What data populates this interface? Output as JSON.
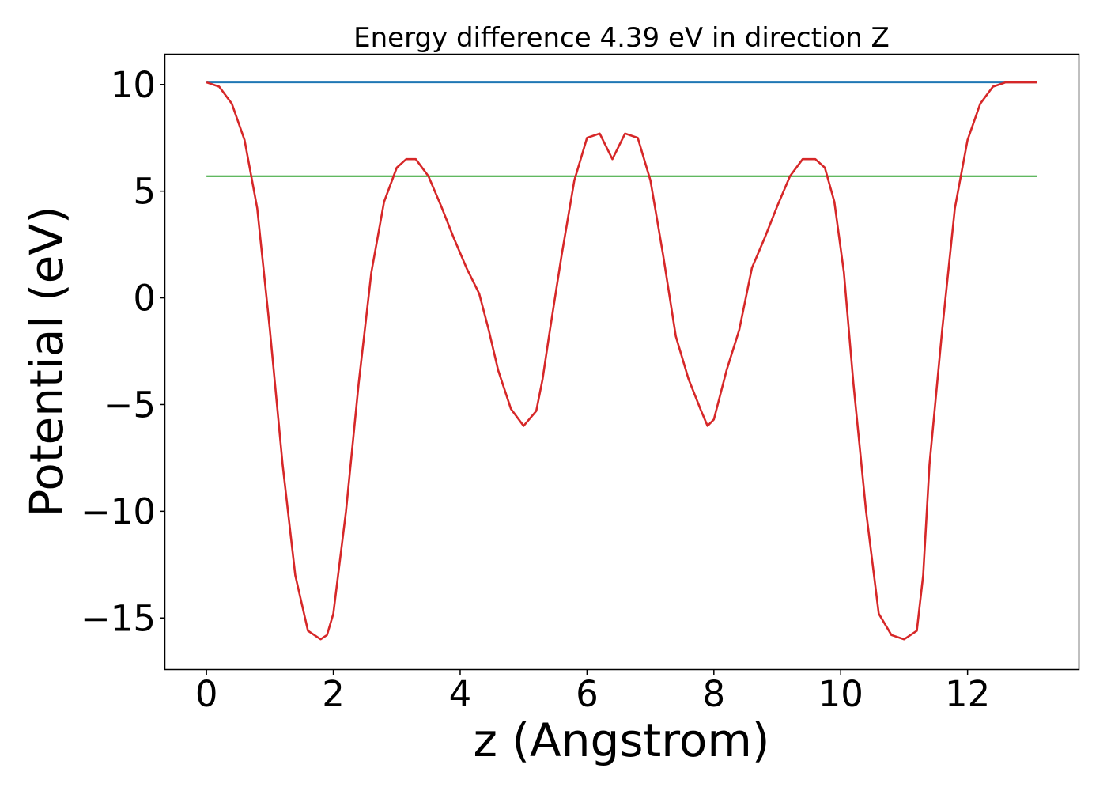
{
  "chart_data": {
    "type": "line",
    "title": "Energy difference 4.39 eV in direction Z",
    "xlabel": "z (Angstrom)",
    "ylabel": "Potential (eV)",
    "xlim": [
      -0.65,
      13.75
    ],
    "ylim": [
      -17.4,
      11.4
    ],
    "xticks": [
      0,
      2,
      4,
      6,
      8,
      10,
      12
    ],
    "xtick_labels": [
      "0",
      "2",
      "4",
      "6",
      "8",
      "10",
      "12"
    ],
    "yticks": [
      10,
      5,
      0,
      -5,
      -10,
      -15
    ],
    "ytick_labels": [
      "10",
      "5",
      "0",
      "−5",
      "−10",
      "−15"
    ],
    "grid": false,
    "legend": false,
    "series": [
      {
        "color": "#d62728",
        "x": [
          0,
          0.2,
          0.4,
          0.6,
          0.8,
          1.0,
          1.2,
          1.4,
          1.6,
          1.8,
          1.9,
          2.0,
          2.2,
          2.4,
          2.6,
          2.8,
          3.0,
          3.15,
          3.3,
          3.5,
          3.7,
          3.9,
          4.1,
          4.3,
          4.45,
          4.6,
          4.8,
          5.0,
          5.2,
          5.3,
          5.4,
          5.6,
          5.8,
          6.0,
          6.2,
          6.4,
          6.6,
          6.8,
          7.0,
          7.2,
          7.4,
          7.6,
          7.8,
          7.9,
          8.0,
          8.2,
          8.4,
          8.6,
          8.8,
          9.0,
          9.2,
          9.4,
          9.6,
          9.75,
          9.9,
          10.05,
          10.2,
          10.4,
          10.6,
          10.8,
          11.0,
          11.2,
          11.3,
          11.4,
          11.6,
          11.8,
          12.0,
          12.2,
          12.4,
          12.6,
          12.8,
          13.0,
          13.1
        ],
        "y": [
          10.1,
          9.9,
          9.1,
          7.4,
          4.2,
          -1.5,
          -7.8,
          -13.0,
          -15.6,
          -16.0,
          -15.8,
          -14.8,
          -10.0,
          -4.0,
          1.2,
          4.5,
          6.1,
          6.5,
          6.5,
          5.7,
          4.3,
          2.8,
          1.4,
          0.2,
          -1.5,
          -3.4,
          -5.2,
          -6.0,
          -5.3,
          -3.8,
          -1.8,
          2.0,
          5.5,
          7.5,
          7.7,
          6.5,
          7.7,
          7.5,
          5.5,
          2.0,
          -1.8,
          -3.8,
          -5.3,
          -6.0,
          -5.7,
          -3.4,
          -1.5,
          1.4,
          2.8,
          4.3,
          5.7,
          6.5,
          6.5,
          6.1,
          4.5,
          1.2,
          -4.0,
          -10.0,
          -14.8,
          -15.8,
          -16.0,
          -15.6,
          -13.0,
          -7.8,
          -1.5,
          4.2,
          7.4,
          9.1,
          9.9,
          10.1,
          10.1,
          10.1,
          10.1
        ]
      },
      {
        "color": "#1f77b4",
        "x": [
          0,
          13.1
        ],
        "y": [
          10.1,
          10.1
        ]
      },
      {
        "color": "#2ca02c",
        "x": [
          0,
          13.1
        ],
        "y": [
          5.7,
          5.7
        ]
      }
    ]
  }
}
